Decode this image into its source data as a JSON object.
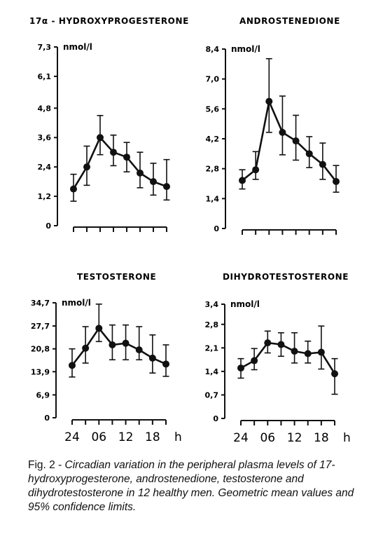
{
  "caption": {
    "prefix": "Fig. 2 - ",
    "text": "Circadian variation in the peripheral plasma levels of 17-hydroxyprogesterone, androstenedione, testosterone and dihydrotestosterone in 12 healthy men. Geometric mean values and 95% confidence limits."
  },
  "x_axis": {
    "tick_labels": [
      "24",
      "06",
      "12",
      "18"
    ],
    "unit_label": "h"
  },
  "chart_data": [
    {
      "type": "line",
      "title": "17α - HYDROXYPROGESTERONE",
      "ylabel": "nmol/l",
      "yticks": [
        "0",
        "1,2",
        "2,4",
        "3,6",
        "4,8",
        "6,1",
        "7,3"
      ],
      "ylim": [
        0,
        7.3
      ],
      "x_tick_labels": [],
      "series": [
        {
          "values": [
            1.5,
            2.4,
            3.6,
            3.0,
            2.8,
            2.15,
            1.8,
            1.6
          ],
          "lower": [
            1.0,
            1.65,
            2.9,
            2.45,
            2.2,
            1.55,
            1.25,
            1.05
          ],
          "upper": [
            2.1,
            3.25,
            4.5,
            3.7,
            3.4,
            3.0,
            2.55,
            2.7
          ]
        }
      ]
    },
    {
      "type": "line",
      "title": "ANDROSTENEDIONE",
      "ylabel": "nmol/l",
      "yticks": [
        "0",
        "1,4",
        "2,8",
        "4,2",
        "5,6",
        "7,0",
        "8,4"
      ],
      "ylim": [
        0,
        8.4
      ],
      "x_tick_labels": [],
      "series": [
        {
          "values": [
            2.25,
            2.75,
            5.95,
            4.5,
            4.1,
            3.5,
            3.0,
            2.2
          ],
          "lower": [
            1.85,
            2.3,
            4.5,
            3.45,
            3.2,
            2.85,
            2.3,
            1.7
          ],
          "upper": [
            2.75,
            3.6,
            7.95,
            6.2,
            5.3,
            4.3,
            4.0,
            2.95
          ]
        }
      ]
    },
    {
      "type": "line",
      "title": "TESTOSTERONE",
      "ylabel": "nmol/l",
      "yticks": [
        "0",
        "6,9",
        "13,9",
        "20,8",
        "27,7",
        "34,7"
      ],
      "ylim": [
        0,
        34.7
      ],
      "x_tick_labels": [
        "24",
        "06",
        "12",
        "18"
      ],
      "series": [
        {
          "values": [
            15.8,
            21.0,
            27.0,
            22.0,
            22.5,
            20.5,
            18.0,
            16.2
          ],
          "lower": [
            12.3,
            16.5,
            23.0,
            17.5,
            17.5,
            17.5,
            13.5,
            12.5
          ],
          "upper": [
            20.8,
            27.5,
            34.3,
            28.0,
            28.0,
            27.5,
            25.0,
            22.0
          ]
        }
      ]
    },
    {
      "type": "line",
      "title": "DIHYDROTESTOSTERONE",
      "ylabel": "nmol/l",
      "yticks": [
        "0",
        "0,7",
        "1,4",
        "2,1",
        "2,8",
        "3,4"
      ],
      "ylim": [
        0,
        3.4
      ],
      "x_tick_labels": [
        "24",
        "06",
        "12",
        "18"
      ],
      "series": [
        {
          "values": [
            1.5,
            1.72,
            2.25,
            2.2,
            2.0,
            1.93,
            1.97,
            1.33
          ],
          "lower": [
            1.2,
            1.45,
            1.95,
            1.85,
            1.65,
            1.65,
            1.47,
            0.72
          ],
          "upper": [
            1.78,
            2.08,
            2.6,
            2.55,
            2.55,
            2.3,
            2.75,
            1.78
          ]
        }
      ]
    }
  ]
}
